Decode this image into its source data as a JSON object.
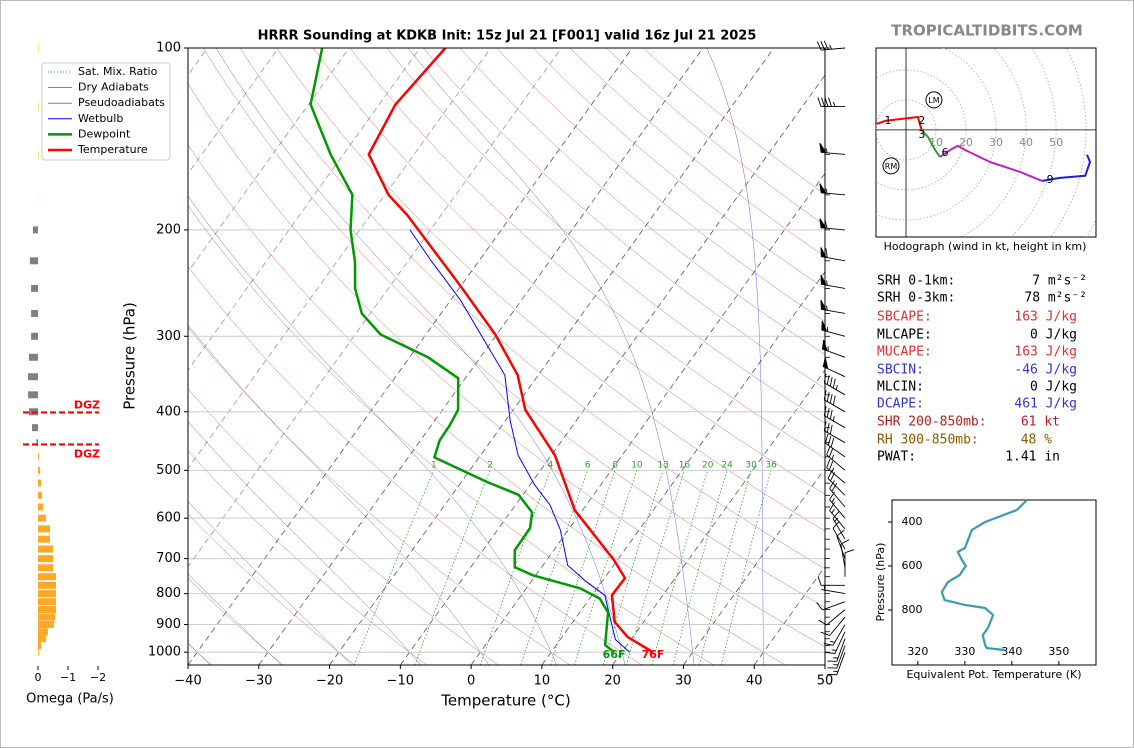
{
  "header": {
    "watermark": "TROPICALTIDBITS.COM"
  },
  "chart_data": [
    {
      "type": "skewt",
      "title": "HRRR Sounding at KDKB Init: 15z Jul 21 [F001] valid 16z Jul 21 2025",
      "xlabel": "Temperature (°C)",
      "ylabel": "Pressure (hPa)",
      "xlim": [
        -40,
        50
      ],
      "ylim": [
        1050,
        100
      ],
      "log_y": true,
      "grid": true,
      "legend": "upper left",
      "xticks": [
        {
          "value": -40,
          "label": "−40"
        },
        {
          "value": -30,
          "label": "−30"
        },
        {
          "value": -20,
          "label": "−20"
        },
        {
          "value": -10,
          "label": "−10"
        },
        0,
        10,
        20,
        30,
        40,
        50
      ],
      "yticks": [
        100,
        200,
        300,
        400,
        500,
        600,
        700,
        800,
        900,
        1000
      ],
      "reference_lines": [
        {
          "name": "Sat. Mix. Ratio",
          "color": "#2ca02c"
        },
        {
          "name": "Dry Adiabats",
          "color": "#d62728"
        },
        {
          "name": "Pseudoadiabats",
          "color": "#2525d0"
        }
      ],
      "mixing_ratios": [
        1,
        2,
        4,
        6,
        8,
        10,
        13,
        16,
        20,
        24,
        30,
        36
      ],
      "series": [
        {
          "name": "Wetbulb",
          "color": "#0000ff",
          "pressure": [
            1000,
            953,
            805,
            761,
            718,
            628,
            571,
            529,
            472,
            413,
            348,
            316,
            261,
            224,
            200
          ],
          "values": [
            21.1,
            17.8,
            11.8,
            7.5,
            3.5,
            -1.1,
            -5.1,
            -9.3,
            -14.7,
            -19.4,
            -24.7,
            -29.4,
            -38.7,
            -47.0,
            -52.9
          ]
        },
        {
          "name": "Dewpoint",
          "color": "#009900",
          "surface_label": "66F",
          "pressure": [
            1000,
            973,
            859,
            815,
            784,
            746,
            723,
            678,
            623,
            587,
            549,
            523,
            476,
            446,
            421,
            397,
            352,
            325,
            298,
            275,
            250,
            226,
            200,
            175,
            150,
            124,
            100
          ],
          "values": [
            18.9,
            16.9,
            14.0,
            11.4,
            7.6,
            -0.4,
            -3.8,
            -5.5,
            -5.6,
            -6.9,
            -10.6,
            -16.3,
            -26.3,
            -27.3,
            -27.4,
            -27.8,
            -31.0,
            -37.4,
            -46.4,
            -51.2,
            -54.7,
            -57.4,
            -61.3,
            -64.6,
            -71.8,
            -79.7,
            -83.8
          ]
        },
        {
          "name": "Temperature",
          "color": "#ff0000",
          "surface_label": "76F",
          "pressure": [
            1000,
            944,
            891,
            805,
            754,
            705,
            582,
            472,
            397,
            348,
            298,
            247,
            189,
            175,
            150,
            124,
            100
          ],
          "values": [
            24.4,
            19.3,
            15.9,
            12.8,
            12.9,
            9.6,
            -1.1,
            -9.5,
            -18.3,
            -22.9,
            -30.2,
            -40.2,
            -54.8,
            -59.5,
            -66.4,
            -67.7,
            -66.4
          ]
        }
      ],
      "wind": {
        "pressure": [
          100,
          125,
          150,
          175,
          200,
          225,
          250,
          275,
          300,
          325,
          350,
          375,
          400,
          425,
          450,
          475,
          500,
          525,
          550,
          575,
          600,
          625,
          650,
          675,
          700,
          725,
          750,
          775,
          800,
          825,
          850,
          875,
          900,
          925,
          950,
          975,
          1000
        ],
        "speed": [
          35,
          45,
          55,
          55,
          60,
          60,
          55,
          55,
          55,
          55,
          50,
          45,
          40,
          35,
          30,
          30,
          25,
          25,
          20,
          20,
          15,
          15,
          15,
          10,
          10,
          10,
          10,
          10,
          5,
          10,
          10,
          10,
          15,
          15,
          15,
          15,
          15
        ],
        "direction": [
          265,
          270,
          275,
          275,
          275,
          280,
          280,
          280,
          285,
          290,
          295,
          300,
          300,
          300,
          300,
          305,
          310,
          310,
          315,
          320,
          320,
          320,
          330,
          330,
          340,
          350,
          0,
          270,
          280,
          250,
          230,
          220,
          210,
          205,
          200,
          200,
          200
        ]
      }
    },
    {
      "type": "omega",
      "xlabel": "Omega (Pa/s)",
      "xlim": [
        0.5,
        -2.3
      ],
      "xticks": [
        0,
        {
          "value": -1,
          "label": "−1"
        },
        {
          "value": -2,
          "label": "−2"
        }
      ],
      "pressure": [
        100,
        125,
        150,
        175,
        200,
        225,
        250,
        275,
        300,
        325,
        350,
        375,
        400,
        425,
        450,
        475,
        500,
        525,
        550,
        575,
        600,
        625,
        650,
        675,
        700,
        725,
        750,
        775,
        800,
        825,
        850,
        875,
        900,
        925,
        950,
        975,
        1000
      ],
      "values": [
        -0.03,
        -0.03,
        -0.03,
        -0.01,
        0.17,
        0.27,
        0.23,
        0.23,
        0.23,
        0.3,
        0.33,
        0.33,
        0.3,
        0.2,
        0.05,
        -0.03,
        -0.07,
        -0.1,
        -0.13,
        -0.17,
        -0.27,
        -0.4,
        -0.4,
        -0.5,
        -0.5,
        -0.5,
        -0.6,
        -0.6,
        -0.6,
        -0.6,
        -0.6,
        -0.57,
        -0.53,
        -0.33,
        -0.27,
        -0.1,
        -0.03
      ],
      "colors": [
        "#ffe066",
        "#ffe066",
        "#ffe066",
        "#ffe066",
        "#808080",
        "#808080",
        "#808080",
        "#808080",
        "#808080",
        "#808080",
        "#808080",
        "#808080",
        "#808080",
        "#808080",
        "#808080",
        "#ffa726",
        "#ffa726",
        "#ffa726",
        "#ffa726",
        "#ffa726",
        "#ffa726",
        "#ffa726",
        "#ffa726",
        "#ffa726",
        "#ffa726",
        "#ffa726",
        "#ffa726",
        "#ffa726",
        "#ffa726",
        "#ffa726",
        "#ffa726",
        "#ffa726",
        "#ffa726",
        "#ffa726",
        "#ffa726",
        "#ffa726",
        "#ffa726"
      ],
      "dgz": {
        "label": "DGZ",
        "color": "#ff0000",
        "pressure": [
          401,
          453
        ]
      }
    },
    {
      "type": "hodograph",
      "caption": "Hodograph (wind in kt, height in km)",
      "xlim": [
        -10,
        63.3
      ],
      "ylim": [
        -35.7,
        27.3
      ],
      "rings": [
        10,
        20,
        30,
        40,
        50
      ],
      "segments": [
        {
          "color": "#ff0000",
          "u": [
            -9.7,
            -7,
            4,
            4.7,
            5.3
          ],
          "v": [
            2,
            3,
            4.3,
            1.7,
            -0.3
          ]
        },
        {
          "color": "#2ca02c",
          "u": [
            5.3,
            7.3,
            9.7,
            11.3
          ],
          "v": [
            -0.3,
            -2.3,
            -6.7,
            -9
          ]
        },
        {
          "color": "#c020c0",
          "u": [
            11.3,
            14.7,
            17.3,
            19.7,
            28,
            38,
            45.3
          ],
          "v": [
            -9,
            -6.7,
            -5.3,
            -6.7,
            -10.7,
            -14,
            -17
          ]
        },
        {
          "color": "#1f1fe0",
          "u": [
            45.3,
            51.3,
            59.7,
            61.3,
            60.3
          ],
          "v": [
            -17,
            -16,
            -15.3,
            -10.7,
            -8.3
          ]
        }
      ],
      "height_labels": {
        "labels": [
          "1",
          "2",
          "3",
          "6",
          "9"
        ],
        "u": [
          -6,
          5.3,
          5.3,
          13,
          48
        ],
        "v": [
          3,
          3,
          -1.7,
          -7.7,
          -16.7
        ]
      },
      "storm_motion": {
        "labels": [
          "LM",
          "RM"
        ],
        "u": [
          9.3,
          -5
        ],
        "v": [
          10,
          -12
        ]
      }
    },
    {
      "type": "line",
      "xlabel": "Equivalent Pot. Temperature (K)",
      "ylabel": "Pressure (hPa)",
      "xlim": [
        314.5,
        357.9
      ],
      "ylim": [
        1050,
        300
      ],
      "xticks": [
        320,
        330,
        340,
        350
      ],
      "yticks": [
        400,
        600,
        800
      ],
      "color": "#3a9bb0",
      "pressure": [
        300,
        345,
        400,
        436,
        518,
        536,
        573,
        600,
        641,
        673,
        718,
        755,
        777,
        791,
        823,
        882,
        914,
        959,
        973,
        982
      ],
      "values": [
        343.2,
        341.1,
        334.3,
        331.5,
        330,
        328.5,
        329.4,
        330.2,
        328.9,
        326.4,
        325.1,
        325.7,
        330,
        334.3,
        336,
        334.9,
        333.8,
        334.3,
        334.7,
        338.5
      ]
    }
  ],
  "parameters": [
    {
      "label": "SRH 0-1km:",
      "value": "7 m²s⁻²",
      "color": "#000000"
    },
    {
      "label": "SRH 0-3km:",
      "value": "78 m²s⁻²",
      "color": "#000000"
    },
    {
      "label": "SBCAPE:",
      "value": "163 J/kg",
      "color": "#e03030"
    },
    {
      "label": "MLCAPE:",
      "value": "0 J/kg",
      "color": "#000000"
    },
    {
      "label": "MUCAPE:",
      "value": "163 J/kg",
      "color": "#e03030"
    },
    {
      "label": "SBCIN:",
      "value": "-46 J/kg",
      "color": "#3333cc"
    },
    {
      "label": "MLCIN:",
      "value": "0 J/kg",
      "color": "#000000"
    },
    {
      "label": "DCAPE:",
      "value": "461 J/kg",
      "color": "#3333cc"
    },
    {
      "label": "SHR 200-850mb:",
      "value": "61 kt",
      "color": "#b02020"
    },
    {
      "label": "RH 300-850mb:",
      "value": "48 %",
      "color": "#8b5a00"
    },
    {
      "label": "PWAT:",
      "value": "1.41 in",
      "color": "#000000"
    }
  ]
}
